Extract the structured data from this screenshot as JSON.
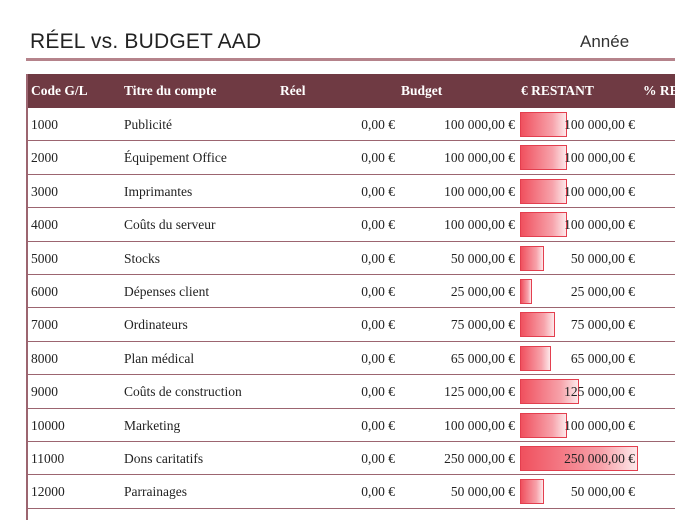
{
  "header": {
    "title": "RÉEL vs. BUDGET AAD",
    "year_label": "Année"
  },
  "table": {
    "columns": [
      "Code G/L",
      "Titre du compte",
      "Réel",
      "Budget",
      "€ RESTANT",
      "% RE"
    ],
    "rows": [
      {
        "code": "1000",
        "title": "Publicité",
        "reel": "0,00 €",
        "budget": "100 000,00 €",
        "restant": "100 000,00 €",
        "fill": 0.4
      },
      {
        "code": "2000",
        "title": "Équipement Office",
        "reel": "0,00 €",
        "budget": "100 000,00 €",
        "restant": "100 000,00 €",
        "fill": 0.4
      },
      {
        "code": "3000",
        "title": "Imprimantes",
        "reel": "0,00 €",
        "budget": "100 000,00 €",
        "restant": "100 000,00 €",
        "fill": 0.4
      },
      {
        "code": "4000",
        "title": "Coûts du serveur",
        "reel": "0,00 €",
        "budget": "100 000,00 €",
        "restant": "100 000,00 €",
        "fill": 0.4
      },
      {
        "code": "5000",
        "title": "Stocks",
        "reel": "0,00 €",
        "budget": "50 000,00 €",
        "restant": "50 000,00 €",
        "fill": 0.2
      },
      {
        "code": "6000",
        "title": "Dépenses client",
        "reel": "0,00 €",
        "budget": "25 000,00 €",
        "restant": "25 000,00 €",
        "fill": 0.1
      },
      {
        "code": "7000",
        "title": "Ordinateurs",
        "reel": "0,00 €",
        "budget": "75 000,00 €",
        "restant": "75 000,00 €",
        "fill": 0.3
      },
      {
        "code": "8000",
        "title": "Plan médical",
        "reel": "0,00 €",
        "budget": "65 000,00 €",
        "restant": "65 000,00 €",
        "fill": 0.26
      },
      {
        "code": "9000",
        "title": "Coûts de construction",
        "reel": "0,00 €",
        "budget": "125 000,00 €",
        "restant": "125 000,00 €",
        "fill": 0.5
      },
      {
        "code": "10000",
        "title": "Marketing",
        "reel": "0,00 €",
        "budget": "100 000,00 €",
        "restant": "100 000,00 €",
        "fill": 0.4
      },
      {
        "code": "11000",
        "title": "Dons caritatifs",
        "reel": "0,00 €",
        "budget": "250 000,00 €",
        "restant": "250 000,00 €",
        "fill": 1.0
      },
      {
        "code": "12000",
        "title": "Parrainages",
        "reel": "0,00 €",
        "budget": "50 000,00 €",
        "restant": "50 000,00 €",
        "fill": 0.2
      }
    ]
  },
  "colors": {
    "header_bg": "#6f3a43",
    "rule": "#9c6570",
    "databar": "#f0505e"
  }
}
